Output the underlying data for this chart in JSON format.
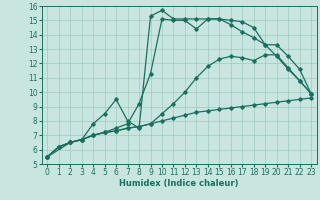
{
  "xlabel": "Humidex (Indice chaleur)",
  "xlim": [
    -0.5,
    23.5
  ],
  "ylim": [
    5,
    16
  ],
  "xticks": [
    0,
    1,
    2,
    3,
    4,
    5,
    6,
    7,
    8,
    9,
    10,
    11,
    12,
    13,
    14,
    15,
    16,
    17,
    18,
    19,
    20,
    21,
    22,
    23
  ],
  "yticks": [
    5,
    6,
    7,
    8,
    9,
    10,
    11,
    12,
    13,
    14,
    15,
    16
  ],
  "bg_color": "#c8e6df",
  "grid_color": "#a0c8c0",
  "line_color": "#1a7060",
  "line1_x": [
    0,
    1,
    2,
    3,
    4,
    5,
    6,
    7,
    8,
    9,
    10,
    11,
    12,
    13,
    14,
    15,
    16,
    17,
    18,
    19,
    20,
    21,
    22,
    23
  ],
  "line1_y": [
    5.5,
    6.2,
    6.5,
    6.7,
    7.0,
    7.2,
    7.3,
    7.5,
    7.6,
    7.8,
    8.0,
    8.2,
    8.4,
    8.6,
    8.7,
    8.8,
    8.9,
    9.0,
    9.1,
    9.2,
    9.3,
    9.4,
    9.5,
    9.6
  ],
  "line2_x": [
    0,
    1,
    2,
    3,
    4,
    5,
    6,
    7,
    8,
    9,
    10,
    11,
    12,
    13,
    14,
    15,
    16,
    17,
    18,
    19,
    20,
    21,
    22,
    23
  ],
  "line2_y": [
    5.5,
    6.2,
    6.5,
    6.7,
    7.0,
    7.2,
    7.3,
    7.5,
    7.6,
    7.8,
    8.5,
    9.2,
    10.0,
    11.0,
    11.8,
    12.3,
    12.5,
    12.4,
    12.2,
    12.6,
    12.6,
    11.7,
    10.8,
    9.9
  ],
  "line3_x": [
    0,
    1,
    2,
    3,
    4,
    5,
    6,
    7,
    8,
    9,
    10,
    11,
    12,
    13,
    14,
    15,
    16,
    17,
    18,
    19,
    20,
    21,
    22,
    23
  ],
  "line3_y": [
    5.5,
    6.2,
    6.5,
    6.7,
    7.0,
    7.2,
    7.5,
    7.8,
    9.2,
    11.3,
    15.1,
    15.0,
    15.0,
    14.4,
    15.1,
    15.1,
    14.7,
    14.2,
    13.8,
    13.3,
    12.5,
    11.6,
    10.8,
    9.9
  ],
  "line4_x": [
    0,
    2,
    3,
    4,
    5,
    6,
    7,
    8,
    9,
    10,
    11,
    12,
    13,
    14,
    15,
    16,
    17,
    18,
    19,
    20,
    21,
    22,
    23
  ],
  "line4_y": [
    5.5,
    6.5,
    6.7,
    7.8,
    8.5,
    9.5,
    8.0,
    7.5,
    15.3,
    15.7,
    15.1,
    15.1,
    15.1,
    15.1,
    15.1,
    15.0,
    14.9,
    14.5,
    13.3,
    13.3,
    12.5,
    11.6,
    9.9
  ],
  "axis_fontsize": 6,
  "tick_fontsize": 5.5
}
